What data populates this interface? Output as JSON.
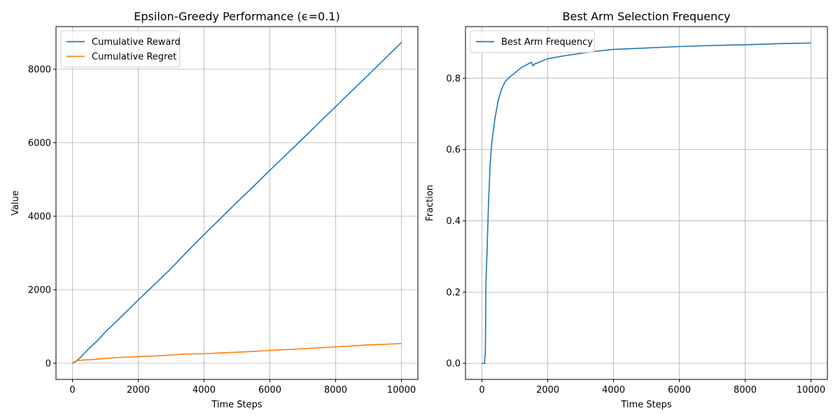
{
  "chart_data": [
    {
      "type": "line",
      "title": "Epsilon-Greedy Performance (ϵ=0.1)",
      "xlabel": "Time Steps",
      "ylabel": "Value",
      "xlim": [
        -500,
        10500
      ],
      "ylim": [
        -440,
        9160
      ],
      "xticks": [
        0,
        2000,
        4000,
        6000,
        8000,
        10000
      ],
      "yticks": [
        0,
        2000,
        4000,
        6000,
        8000
      ],
      "grid": true,
      "legend_position": "upper-left",
      "series": [
        {
          "name": "Cumulative Reward",
          "color": "#1f77b4",
          "x": [
            0,
            100,
            200,
            300,
            500,
            800,
            1000,
            1500,
            2000,
            2500,
            3000,
            3500,
            4000,
            4500,
            5000,
            5500,
            6000,
            6500,
            7000,
            7500,
            8000,
            8500,
            9000,
            9500,
            10000
          ],
          "y": [
            0,
            50,
            120,
            210,
            400,
            650,
            850,
            1280,
            1720,
            2150,
            2580,
            3050,
            3500,
            3940,
            4380,
            4810,
            5250,
            5680,
            6110,
            6550,
            6980,
            7420,
            7850,
            8290,
            8730
          ]
        },
        {
          "name": "Cumulative Regret",
          "color": "#ff7f0e",
          "x": [
            0,
            50,
            150,
            300,
            600,
            1000,
            1500,
            2000,
            2500,
            3000,
            3300,
            4000,
            4500,
            5000,
            5500,
            6000,
            6500,
            7000,
            7500,
            8000,
            8500,
            9000,
            9500,
            10000
          ],
          "y": [
            0,
            40,
            70,
            85,
            100,
            130,
            160,
            180,
            200,
            220,
            245,
            260,
            280,
            300,
            320,
            350,
            370,
            395,
            420,
            445,
            470,
            500,
            515,
            535
          ]
        }
      ]
    },
    {
      "type": "line",
      "title": "Best Arm Selection Frequency",
      "xlabel": "Time Steps",
      "ylabel": "Fraction",
      "xlim": [
        -500,
        10500
      ],
      "ylim": [
        -0.045,
        0.945
      ],
      "xticks": [
        0,
        2000,
        4000,
        6000,
        8000,
        10000
      ],
      "yticks": [
        0.0,
        0.2,
        0.4,
        0.6,
        0.8
      ],
      "grid": true,
      "legend_position": "upper-left",
      "series": [
        {
          "name": "Best Arm Frequency",
          "color": "#1f77b4",
          "x": [
            0,
            80,
            90,
            100,
            110,
            120,
            150,
            200,
            250,
            300,
            400,
            500,
            600,
            700,
            800,
            1000,
            1200,
            1400,
            1500,
            1550,
            1600,
            2000,
            2500,
            3000,
            3500,
            4000,
            5000,
            6000,
            7000,
            8000,
            9000,
            10000
          ],
          "y": [
            0,
            0,
            0.02,
            0.02,
            0.08,
            0.22,
            0.3,
            0.45,
            0.56,
            0.62,
            0.69,
            0.74,
            0.77,
            0.79,
            0.8,
            0.815,
            0.83,
            0.84,
            0.845,
            0.835,
            0.84,
            0.855,
            0.863,
            0.87,
            0.876,
            0.881,
            0.885,
            0.889,
            0.892,
            0.894,
            0.897,
            0.899
          ]
        }
      ]
    }
  ]
}
